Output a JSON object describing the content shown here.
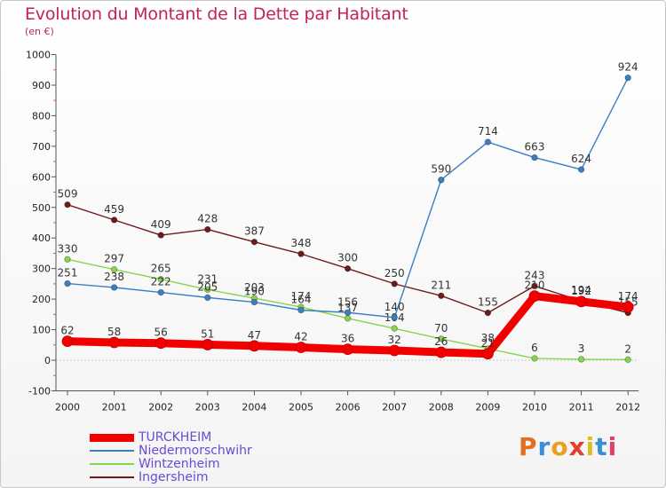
{
  "title": "Evolution du Montant de la Dette par Habitant",
  "subtitle": "(en €)",
  "logo": {
    "text": "Proxiti",
    "colors": [
      "#e07020",
      "#3b8fd6",
      "#e8a020",
      "#e04030",
      "#d9c020",
      "#3b8fd6",
      "#e04060"
    ]
  },
  "chart_data": {
    "type": "line",
    "x": [
      "2000",
      "2001",
      "2002",
      "2003",
      "2004",
      "2005",
      "2006",
      "2007",
      "2008",
      "2009",
      "2010",
      "2011",
      "2012"
    ],
    "ylim": [
      -100,
      1000
    ],
    "yticks": [
      "-100",
      "0",
      "100",
      "200",
      "300",
      "400",
      "500",
      "600",
      "700",
      "800",
      "900",
      "1000"
    ],
    "grid": false,
    "legend_position": "bottom-left",
    "series": [
      {
        "name": "Ingersheim",
        "color": "#6e1a1a",
        "values": [
          509,
          459,
          409,
          428,
          387,
          348,
          300,
          250,
          211,
          155,
          243,
          194,
          155
        ],
        "labels": [
          "509",
          "459",
          "409",
          "428",
          "387",
          "348",
          "300",
          "250",
          "211",
          "155",
          "243",
          "194",
          "155"
        ]
      },
      {
        "name": "Wintzenheim",
        "color": "#86d64a",
        "values": [
          330,
          297,
          265,
          231,
          203,
          174,
          137,
          104,
          70,
          38,
          6,
          3,
          2
        ],
        "labels": [
          "330",
          "297",
          "265",
          "231",
          "203",
          "174",
          "137",
          "104",
          "70",
          "38",
          "6",
          "3",
          "2"
        ]
      },
      {
        "name": "Niedermorschwihr",
        "color": "#3a7fc4",
        "values": [
          251,
          238,
          222,
          205,
          190,
          164,
          156,
          140,
          590,
          714,
          663,
          624,
          924
        ],
        "labels": [
          "251",
          "238",
          "222",
          "205",
          "190",
          "164",
          "156",
          "140",
          "590",
          "714",
          "663",
          "624",
          "924"
        ]
      },
      {
        "name": "TURCKHEIM",
        "color": "#f20000",
        "values": [
          62,
          58,
          56,
          51,
          47,
          42,
          36,
          32,
          26,
          21,
          210,
          192,
          174
        ],
        "labels": [
          "62",
          "58",
          "56",
          "51",
          "47",
          "42",
          "36",
          "32",
          "26",
          "21",
          "210",
          "192",
          "174"
        ]
      }
    ],
    "legend_order": [
      "TURCKHEIM",
      "Niedermorschwihr",
      "Wintzenheim",
      "Ingersheim"
    ]
  }
}
